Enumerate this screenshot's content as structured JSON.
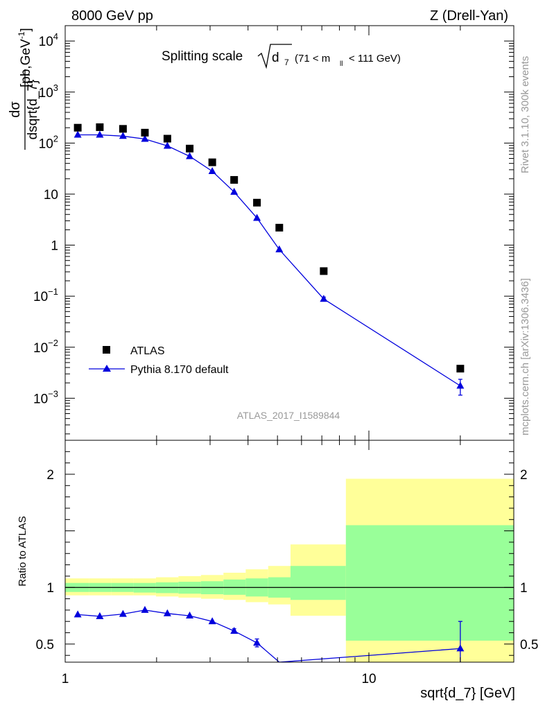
{
  "header": {
    "left": "8000 GeV pp",
    "right": "Z (Drell-Yan)"
  },
  "side_labels": {
    "rivet": "Rivet 3.1.10,  300k events",
    "mcplots": "mcplots.cern.ch [arXiv:1306.3436]"
  },
  "chart_data": [
    {
      "type": "scatter",
      "title": "Splitting scale",
      "title_symbol": "d",
      "title_symbol_sub": "7",
      "title_cut": "(71 < m",
      "title_cut_sub": "ll",
      "title_cut_end": "< 111 GeV)",
      "ylabel_num": "dσ",
      "ylabel_den": "dsqrt{d_7}",
      "ylabel_unit": "[pb,GeV",
      "ylabel_unit_sup": "-1",
      "ylabel_unit_end": "]",
      "watermark": "ATLAS_2017_I1589844",
      "xscale": "log",
      "yscale": "log",
      "xlim": [
        1,
        30
      ],
      "ylim": [
        0.00015,
        20000
      ],
      "y_ticks": [
        {
          "v": 10000,
          "base": "10",
          "exp": "4"
        },
        {
          "v": 1000,
          "base": "10",
          "exp": "3"
        },
        {
          "v": 100,
          "base": "10",
          "exp": "2"
        },
        {
          "v": 10,
          "base": "10",
          "exp": ""
        },
        {
          "v": 1,
          "base": "1",
          "exp": ""
        },
        {
          "v": 0.1,
          "base": "10",
          "exp": "−1"
        },
        {
          "v": 0.01,
          "base": "10",
          "exp": "−2"
        },
        {
          "v": 0.001,
          "base": "10",
          "exp": "−3"
        }
      ],
      "series": [
        {
          "name": "ATLAS",
          "marker": "square",
          "color": "#000000",
          "x": [
            1.1,
            1.3,
            1.55,
            1.83,
            2.17,
            2.57,
            3.05,
            3.6,
            4.28,
            5.07,
            7.1,
            20.0
          ],
          "y": [
            200,
            205,
            190,
            160,
            122,
            78,
            42,
            19,
            6.8,
            2.2,
            0.31,
            0.0038
          ]
        },
        {
          "name": "Pythia 8.170 default",
          "marker": "triangle",
          "color": "#0000dd",
          "x": [
            1.1,
            1.3,
            1.55,
            1.83,
            2.17,
            2.57,
            3.05,
            3.6,
            4.28,
            5.07,
            7.1,
            20.0
          ],
          "y": [
            145,
            145,
            137,
            120,
            88,
            55,
            28,
            11,
            3.4,
            0.82,
            0.088,
            0.00175
          ],
          "err": [
            0,
            0,
            0,
            0,
            0,
            0,
            0,
            0,
            0,
            0,
            0.008,
            0.0006
          ]
        }
      ],
      "legend": "left"
    },
    {
      "type": "scatter",
      "ylabel": "Ratio to ATLAS",
      "xlabel": "sqrt{d_7} [GeV]",
      "xscale": "log",
      "xlim": [
        1,
        30
      ],
      "ylim": [
        0.34,
        2.3
      ],
      "x_tick_labels": [
        {
          "v": 1,
          "label": "1"
        },
        {
          "v": 10,
          "label": "10"
        }
      ],
      "y_ticks": [
        {
          "v": 0.5,
          "label": "0.5"
        },
        {
          "v": 1,
          "label": "1"
        },
        {
          "v": 2,
          "label": "2"
        }
      ],
      "bands": {
        "bins": [
          1.0,
          1.2,
          1.42,
          1.68,
          1.99,
          2.36,
          2.8,
          3.32,
          3.93,
          4.66,
          5.52,
          8.4,
          30
        ],
        "yellow_lo": [
          0.93,
          0.93,
          0.93,
          0.93,
          0.92,
          0.91,
          0.9,
          0.89,
          0.87,
          0.85,
          0.75,
          0.34
        ],
        "yellow_hi": [
          1.08,
          1.08,
          1.08,
          1.08,
          1.09,
          1.1,
          1.11,
          1.13,
          1.16,
          1.19,
          1.38,
          1.96
        ],
        "green_lo": [
          0.96,
          0.96,
          0.96,
          0.955,
          0.95,
          0.945,
          0.94,
          0.935,
          0.92,
          0.91,
          0.89,
          0.53
        ],
        "green_hi": [
          1.04,
          1.04,
          1.04,
          1.04,
          1.045,
          1.05,
          1.055,
          1.07,
          1.08,
          1.09,
          1.19,
          1.55
        ],
        "yellow": "#ffff99",
        "green": "#99ff99"
      },
      "series": [
        {
          "name": "Pythia 8.170 default",
          "color": "#0000dd",
          "x": [
            1.1,
            1.3,
            1.55,
            1.83,
            2.17,
            2.57,
            3.05,
            3.6,
            4.28,
            5.07,
            20.0
          ],
          "y": [
            0.76,
            0.745,
            0.765,
            0.8,
            0.77,
            0.75,
            0.7,
            0.615,
            0.51,
            0.34,
            0.46
          ],
          "err": [
            0,
            0,
            0,
            0,
            0,
            0,
            0,
            0.02,
            0.035,
            0,
            0.24
          ]
        }
      ]
    }
  ]
}
